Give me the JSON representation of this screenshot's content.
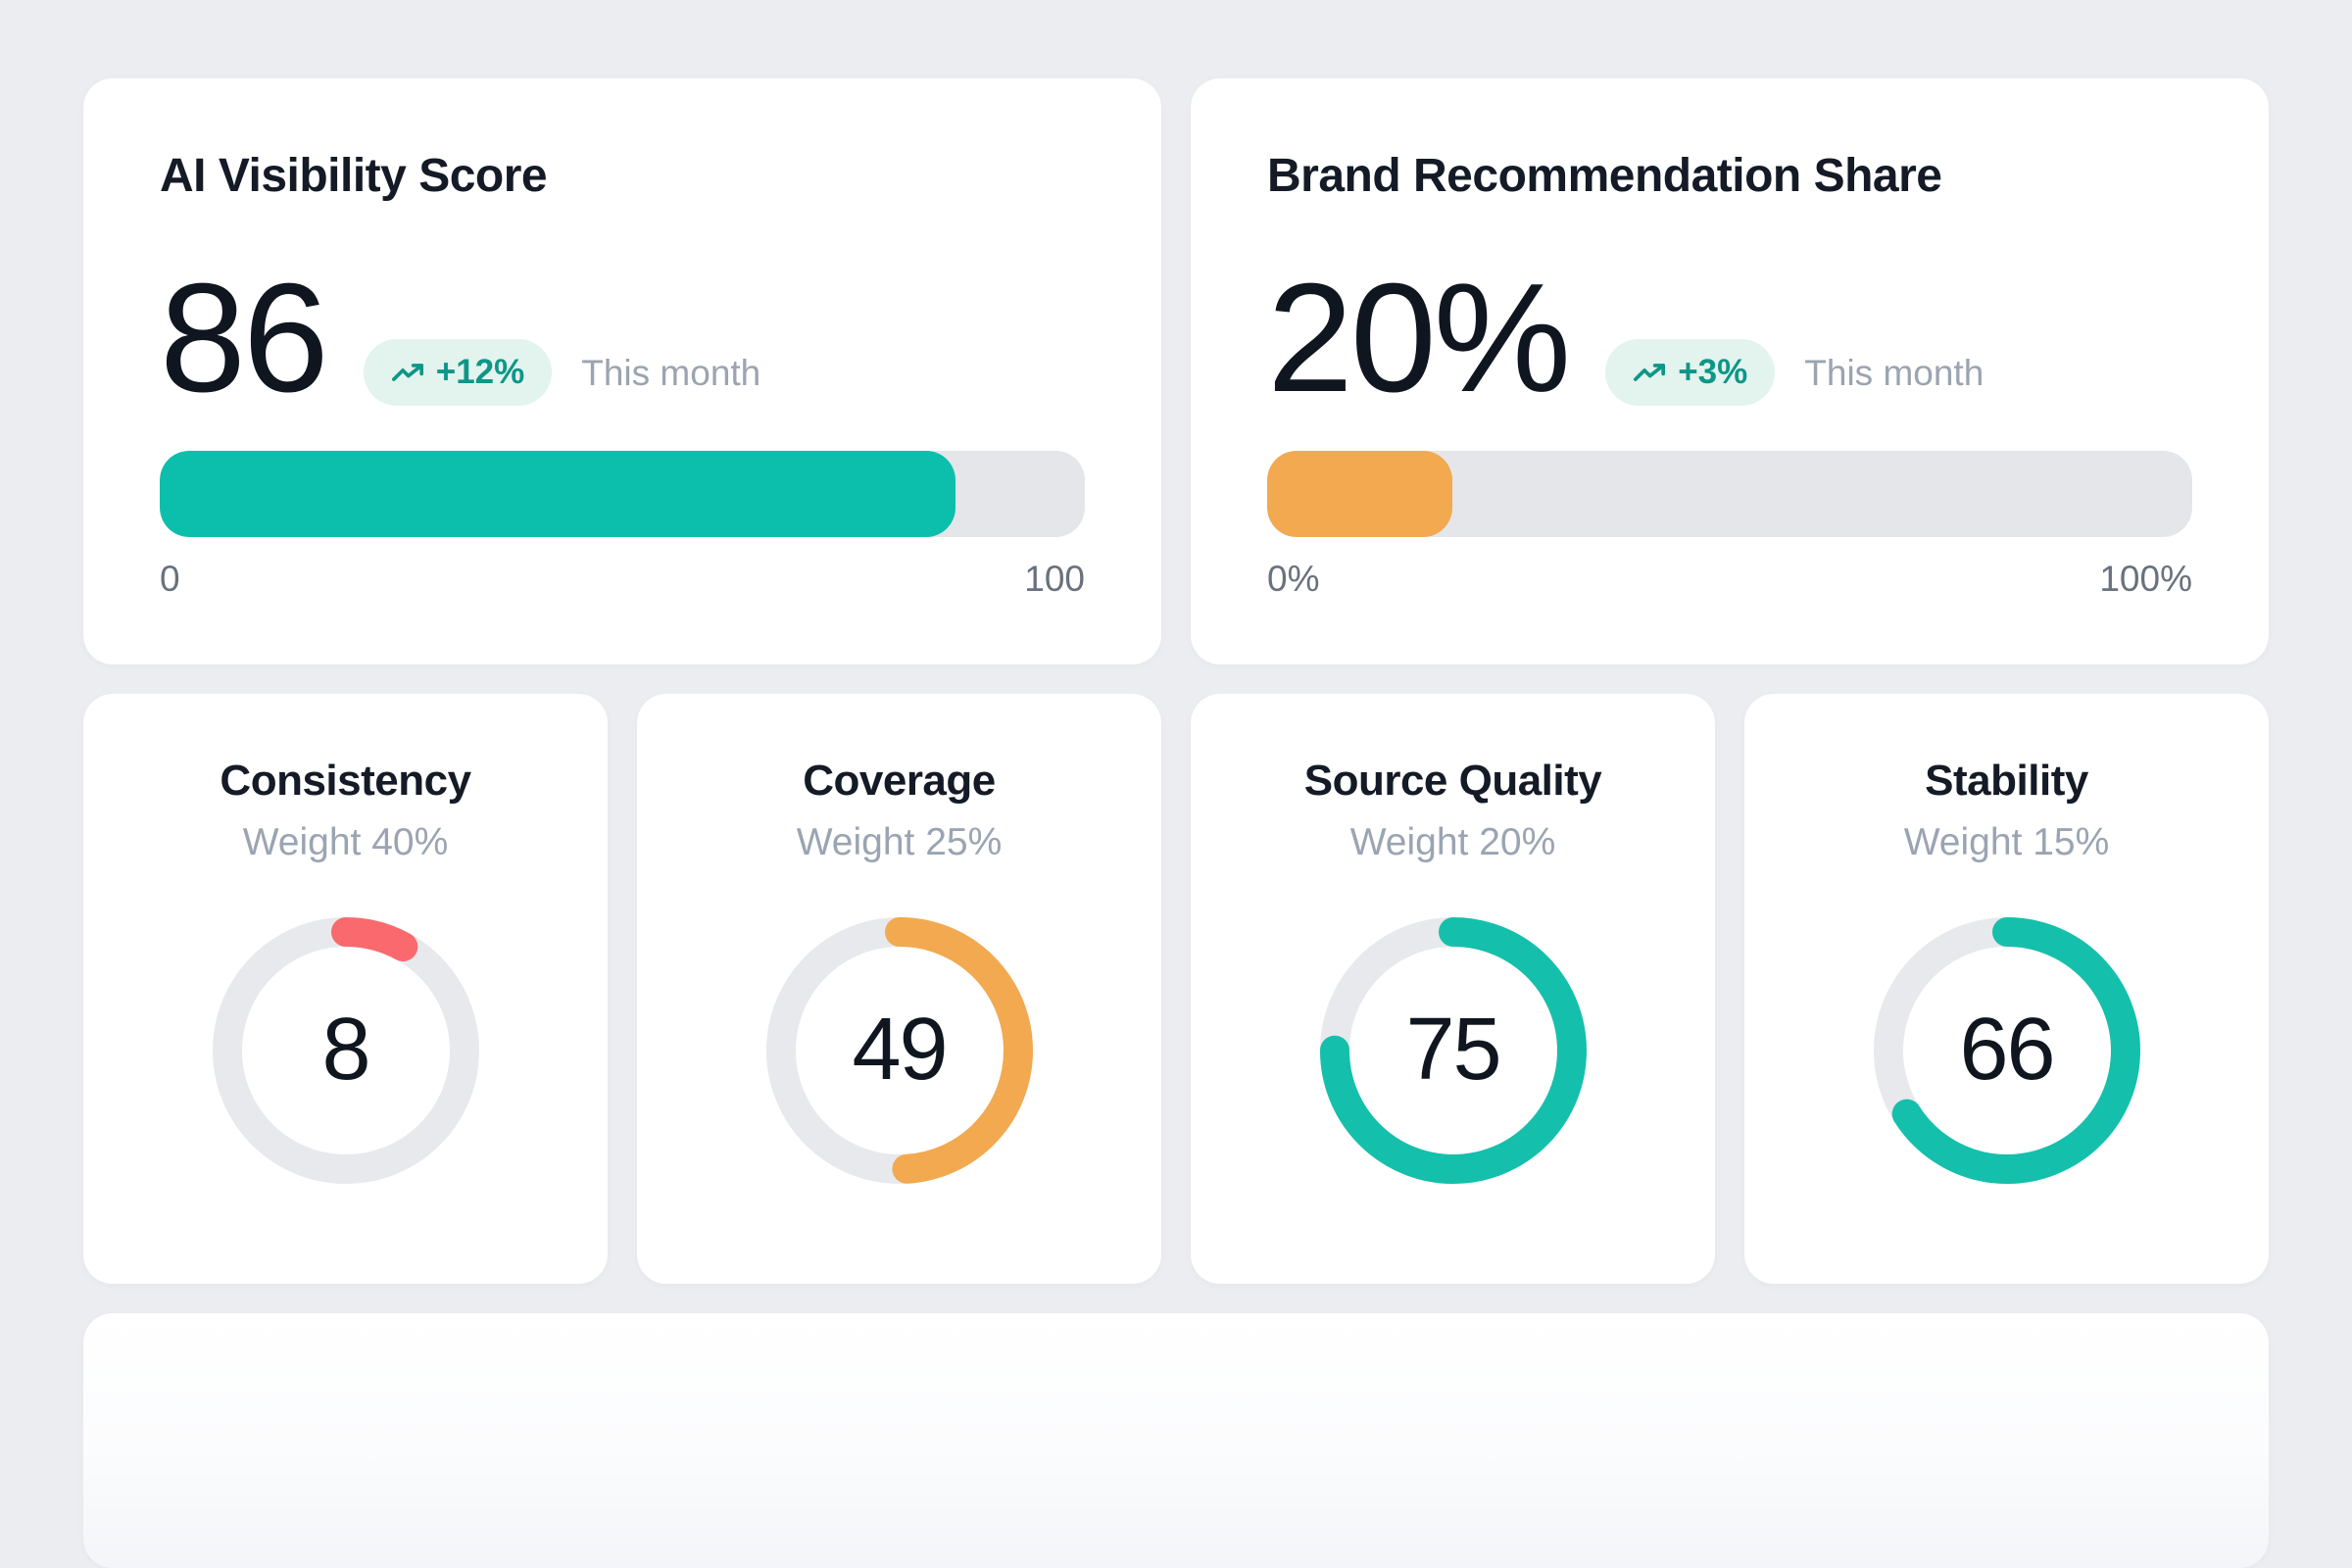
{
  "metrics": [
    {
      "title": "AI Visibility Score",
      "value": "86",
      "badge": "+12%",
      "period": "This month",
      "bar": {
        "percent": 86,
        "color": "#0cbfac",
        "min": "0",
        "max": "100"
      }
    },
    {
      "title": "Brand Recommendation Share",
      "value": "20%",
      "badge": "+3%",
      "period": "This month",
      "bar": {
        "percent": 20,
        "color": "#f2a950",
        "min": "0%",
        "max": "100%"
      }
    }
  ],
  "factors": [
    {
      "title": "Consistency",
      "weight": "Weight 40%",
      "value": "8",
      "percent": 8,
      "color": "#f9696e"
    },
    {
      "title": "Coverage",
      "weight": "Weight 25%",
      "value": "49",
      "percent": 49,
      "color": "#f2a950"
    },
    {
      "title": "Source Quality",
      "weight": "Weight 20%",
      "value": "75",
      "percent": 75,
      "color": "#14c0ab"
    },
    {
      "title": "Stability",
      "weight": "Weight 15%",
      "value": "66",
      "percent": 66,
      "color": "#14c0ab"
    }
  ],
  "colors": {
    "page_background": "#ecedf1",
    "card_background": "#ffffff",
    "badge_background": "#e2f4ed",
    "badge_text": "#0e9688",
    "track_gray": "#e4e6e9",
    "teal": "#0cbfac",
    "orange": "#f2a950",
    "red": "#f9696e"
  }
}
